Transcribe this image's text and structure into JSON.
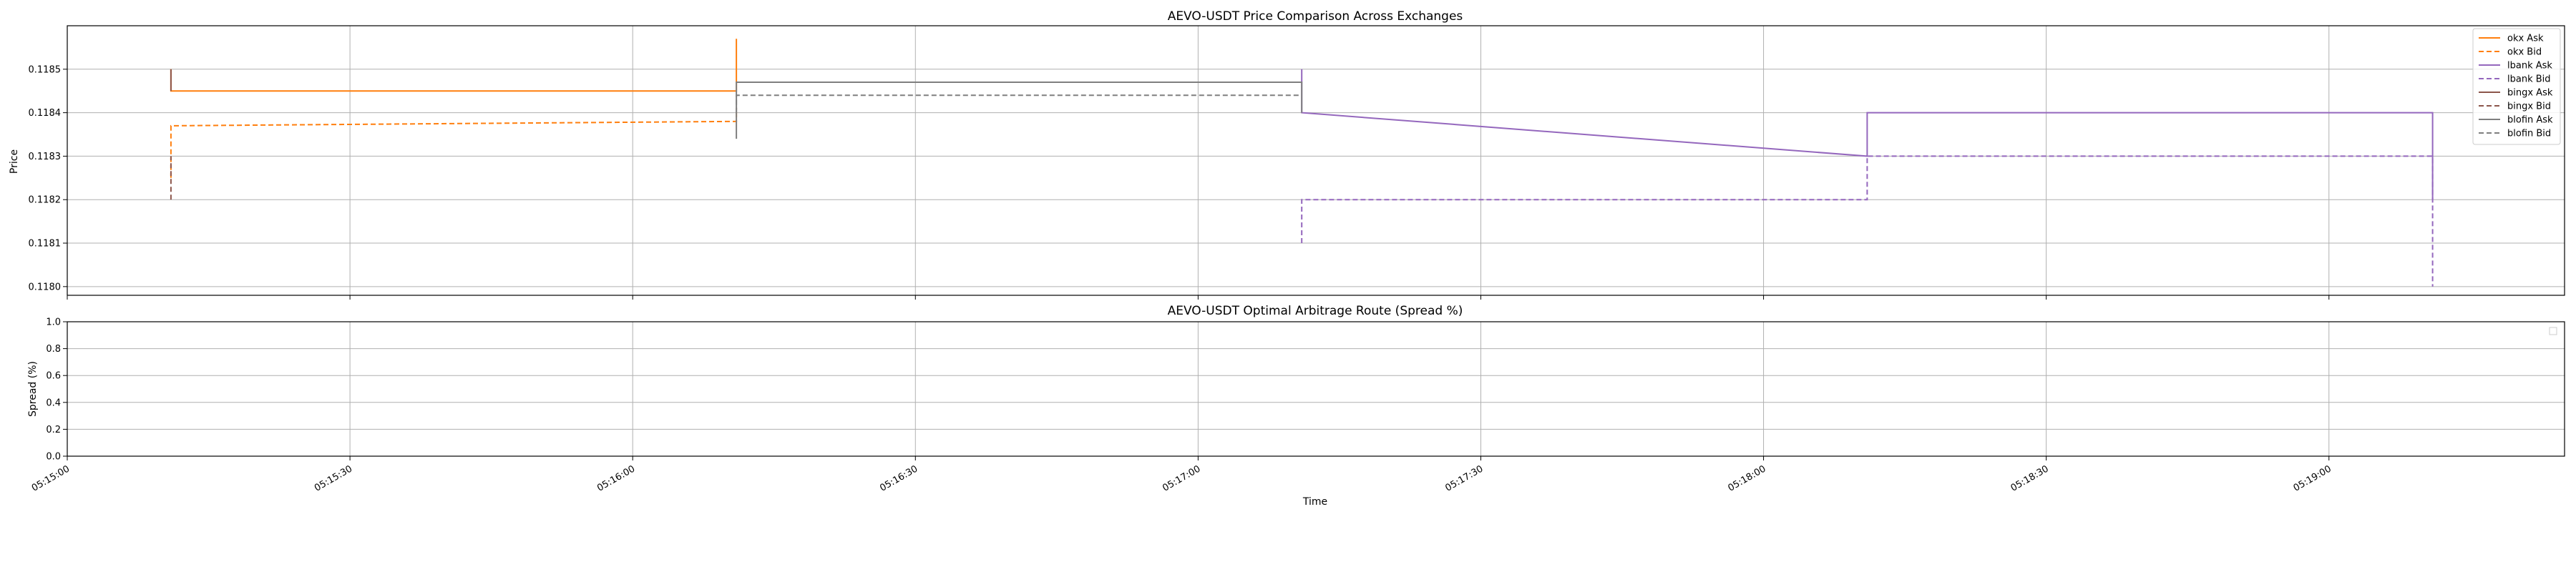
{
  "chart_data": [
    {
      "type": "line",
      "title": "AEVO-USDT Price Comparison Across Exchanges",
      "xlabel": "",
      "ylabel": "Price",
      "xlim": [
        "05:15:00",
        "05:19:25"
      ],
      "ylim": [
        0.11798,
        0.1186
      ],
      "yticks": [
        "0.1180",
        "0.1181",
        "0.1182",
        "0.1183",
        "0.1184",
        "0.1185"
      ],
      "yticks_values": [
        0.118,
        0.1181,
        0.1182,
        0.1183,
        0.1184,
        0.1185
      ],
      "xticks": [
        "05:15:00",
        "05:15:30",
        "05:16:00",
        "05:16:30",
        "05:17:00",
        "05:17:30",
        "05:18:00",
        "05:18:30",
        "05:19:00"
      ],
      "grid": true,
      "legend_position": "top-right",
      "series": [
        {
          "name": "okx Ask",
          "color": "#ff7f0e",
          "dash": "solid",
          "x": [
            "05:15:11",
            "05:15:11",
            "05:16:11",
            "05:16:11"
          ],
          "y": [
            0.1185,
            0.11845,
            0.11845,
            0.11857
          ]
        },
        {
          "name": "okx Bid",
          "color": "#ff7f0e",
          "dash": "dashed",
          "x": [
            "05:15:11",
            "05:15:11",
            "05:16:11",
            "05:16:11"
          ],
          "y": [
            0.11825,
            0.11837,
            0.11838,
            0.11841
          ]
        },
        {
          "name": "lbank Ask",
          "color": "#9467bd",
          "dash": "solid",
          "x": [
            "05:17:11",
            "05:17:11",
            "05:18:11",
            "05:18:11",
            "05:19:11",
            "05:19:11"
          ],
          "y": [
            0.1185,
            0.1184,
            0.1183,
            0.1184,
            0.1184,
            0.1182
          ]
        },
        {
          "name": "lbank Bid",
          "color": "#9467bd",
          "dash": "dashed",
          "x": [
            "05:17:11",
            "05:17:11",
            "05:18:11",
            "05:18:11",
            "05:19:11",
            "05:19:11"
          ],
          "y": [
            0.1181,
            0.1182,
            0.1182,
            0.1183,
            0.1183,
            0.118
          ]
        },
        {
          "name": "bingx Ask",
          "color": "#8c564b",
          "dash": "solid",
          "x": [
            "05:15:11",
            "05:15:11"
          ],
          "y": [
            0.1185,
            0.11845
          ]
        },
        {
          "name": "bingx Bid",
          "color": "#8c564b",
          "dash": "dashed",
          "x": [
            "05:15:11",
            "05:15:11"
          ],
          "y": [
            0.1182,
            0.1183
          ]
        },
        {
          "name": "blofin Ask",
          "color": "#7f7f7f",
          "dash": "solid",
          "x": [
            "05:16:11",
            "05:16:11",
            "05:17:11",
            "05:17:11"
          ],
          "y": [
            0.11834,
            0.11847,
            0.11847,
            0.1184
          ]
        },
        {
          "name": "blofin Bid",
          "color": "#7f7f7f",
          "dash": "dashed",
          "x": [
            "05:16:11",
            "05:16:11",
            "05:17:11"
          ],
          "y": [
            0.1184,
            0.11844,
            0.11844
          ]
        }
      ]
    },
    {
      "type": "line",
      "title": "AEVO-USDT Optimal Arbitrage Route (Spread %)",
      "xlabel": "Time",
      "ylabel": "Spread (%)",
      "xlim": [
        "05:15:00",
        "05:19:25"
      ],
      "ylim": [
        0.0,
        1.0
      ],
      "yticks": [
        "0.0",
        "0.2",
        "0.4",
        "0.6",
        "0.8",
        "1.0"
      ],
      "yticks_values": [
        0.0,
        0.2,
        0.4,
        0.6,
        0.8,
        1.0
      ],
      "xticks": [
        "05:15:00",
        "05:15:30",
        "05:16:00",
        "05:16:30",
        "05:17:00",
        "05:17:30",
        "05:18:00",
        "05:18:30",
        "05:19:00"
      ],
      "grid": true,
      "series": []
    }
  ]
}
